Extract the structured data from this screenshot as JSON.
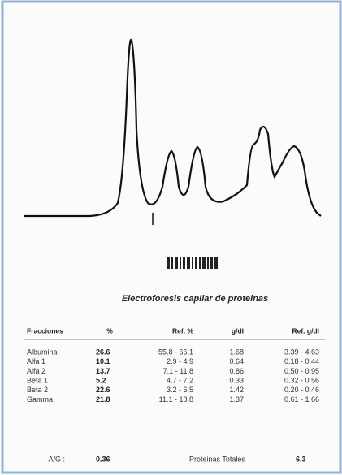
{
  "report": {
    "title": "Electroforesis capilar de proteinas",
    "table": {
      "headers": [
        "Fracciones",
        "%",
        "Ref. %",
        "g/dl",
        "Ref. g/dl"
      ],
      "rows": [
        [
          "Albumina",
          "26.6",
          "55.8 - 66.1",
          "1.68",
          "3.39 - 4.63"
        ],
        [
          "Alfa 1",
          "10.1",
          "2.9 - 4.9",
          "0.64",
          "0.18 - 0.44"
        ],
        [
          "Alfa 2",
          "13.7",
          "7.1 - 11.8",
          "0.86",
          "0.50 - 0.95"
        ],
        [
          "Beta 1",
          "5.2",
          "4.7 - 7.2",
          "0.33",
          "0.32 - 0.56"
        ],
        [
          "Beta 2",
          "22.6",
          "3.2 - 6.5",
          "1.42",
          "0.20 - 0.46"
        ],
        [
          "Gamma",
          "21.8",
          "11.1 - 18.8",
          "1.37",
          "0.61 - 1.66"
        ]
      ]
    },
    "footer": {
      "ag_label": "A/G :",
      "ag_value": "0.36",
      "total_label": "Proteinas Totales",
      "total_value": "6.3"
    }
  }
}
